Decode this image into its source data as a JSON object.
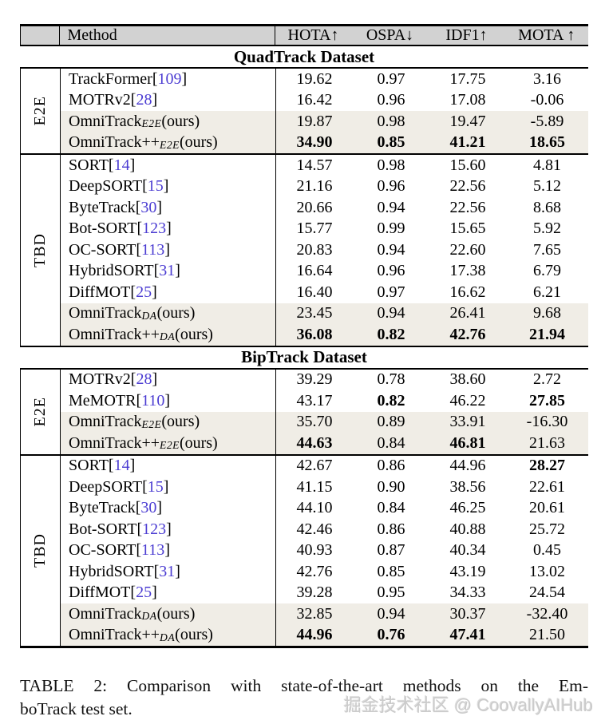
{
  "table": {
    "header": {
      "method": "Method",
      "cols": [
        "HOTA↑",
        "OSPA↓",
        "IDF1↑",
        "MOTA ↑"
      ]
    },
    "citation": {
      "open": "[",
      "close": "]"
    },
    "sections": [
      {
        "title": "QuadTrack Dataset",
        "groups": [
          {
            "label": "E2E",
            "rows": [
              {
                "method": {
                  "name": "TrackFormer",
                  "ref": "109",
                  "sub": "",
                  "suffix": ""
                },
                "shaded": false,
                "values": [
                  "19.62",
                  "0.97",
                  "17.75",
                  "3.16"
                ],
                "bold": [
                  false,
                  false,
                  false,
                  false
                ]
              },
              {
                "method": {
                  "name": "MOTRv2",
                  "ref": "28",
                  "sub": "",
                  "suffix": ""
                },
                "shaded": false,
                "values": [
                  "16.42",
                  "0.96",
                  "17.08",
                  "-0.06"
                ],
                "bold": [
                  false,
                  false,
                  false,
                  false
                ]
              },
              {
                "method": {
                  "name": "OmniTrack",
                  "ref": "",
                  "sub": "E2E",
                  "suffix": " (ours)"
                },
                "shaded": true,
                "values": [
                  "19.87",
                  "0.98",
                  "19.47",
                  "-5.89"
                ],
                "bold": [
                  false,
                  false,
                  false,
                  false
                ]
              },
              {
                "method": {
                  "name": "OmniTrack++",
                  "ref": "",
                  "sub": "E2E",
                  "suffix": " (ours)"
                },
                "shaded": true,
                "values": [
                  "34.90",
                  "0.85",
                  "41.21",
                  "18.65"
                ],
                "bold": [
                  true,
                  true,
                  true,
                  true
                ]
              }
            ]
          },
          {
            "label": "TBD",
            "rows": [
              {
                "method": {
                  "name": "SORT",
                  "ref": "14",
                  "sub": "",
                  "suffix": ""
                },
                "shaded": false,
                "values": [
                  "14.57",
                  "0.98",
                  "15.60",
                  "4.81"
                ],
                "bold": [
                  false,
                  false,
                  false,
                  false
                ]
              },
              {
                "method": {
                  "name": "DeepSORT",
                  "ref": "15",
                  "sub": "",
                  "suffix": ""
                },
                "shaded": false,
                "values": [
                  "21.16",
                  "0.96",
                  "22.56",
                  "5.12"
                ],
                "bold": [
                  false,
                  false,
                  false,
                  false
                ]
              },
              {
                "method": {
                  "name": "ByteTrack",
                  "ref": "30",
                  "sub": "",
                  "suffix": ""
                },
                "shaded": false,
                "values": [
                  "20.66",
                  "0.94",
                  "22.56",
                  "8.68"
                ],
                "bold": [
                  false,
                  false,
                  false,
                  false
                ]
              },
              {
                "method": {
                  "name": "Bot-SORT",
                  "ref": "123",
                  "sub": "",
                  "suffix": ""
                },
                "shaded": false,
                "values": [
                  "15.77",
                  "0.99",
                  "15.65",
                  "5.92"
                ],
                "bold": [
                  false,
                  false,
                  false,
                  false
                ]
              },
              {
                "method": {
                  "name": "OC-SORT",
                  "ref": "113",
                  "sub": "",
                  "suffix": ""
                },
                "shaded": false,
                "values": [
                  "20.83",
                  "0.94",
                  "22.60",
                  "7.65"
                ],
                "bold": [
                  false,
                  false,
                  false,
                  false
                ]
              },
              {
                "method": {
                  "name": "HybridSORT",
                  "ref": "31",
                  "sub": "",
                  "suffix": ""
                },
                "shaded": false,
                "values": [
                  "16.64",
                  "0.96",
                  "17.38",
                  "6.79"
                ],
                "bold": [
                  false,
                  false,
                  false,
                  false
                ]
              },
              {
                "method": {
                  "name": "DiffMOT",
                  "ref": "25",
                  "sub": "",
                  "suffix": ""
                },
                "shaded": false,
                "values": [
                  "16.40",
                  "0.97",
                  "16.62",
                  "6.21"
                ],
                "bold": [
                  false,
                  false,
                  false,
                  false
                ]
              },
              {
                "method": {
                  "name": "OmniTrack",
                  "ref": "",
                  "sub": "DA",
                  "suffix": " (ours)"
                },
                "shaded": true,
                "values": [
                  "23.45",
                  "0.94",
                  "26.41",
                  "9.68"
                ],
                "bold": [
                  false,
                  false,
                  false,
                  false
                ]
              },
              {
                "method": {
                  "name": "OmniTrack++",
                  "ref": "",
                  "sub": "DA",
                  "suffix": " (ours)"
                },
                "shaded": true,
                "values": [
                  "36.08",
                  "0.82",
                  "42.76",
                  "21.94"
                ],
                "bold": [
                  true,
                  true,
                  true,
                  true
                ]
              }
            ]
          }
        ]
      },
      {
        "title": "BipTrack Dataset",
        "groups": [
          {
            "label": "E2E",
            "rows": [
              {
                "method": {
                  "name": "MOTRv2",
                  "ref": "28",
                  "sub": "",
                  "suffix": ""
                },
                "shaded": false,
                "values": [
                  "39.29",
                  "0.78",
                  "38.60",
                  "2.72"
                ],
                "bold": [
                  false,
                  false,
                  false,
                  false
                ]
              },
              {
                "method": {
                  "name": "MeMOTR",
                  "ref": "110",
                  "sub": "",
                  "suffix": ""
                },
                "shaded": false,
                "values": [
                  "43.17",
                  "0.82",
                  "46.22",
                  "27.85"
                ],
                "bold": [
                  false,
                  true,
                  false,
                  true
                ]
              },
              {
                "method": {
                  "name": "OmniTrack",
                  "ref": "",
                  "sub": "E2E",
                  "suffix": " (ours)"
                },
                "shaded": true,
                "values": [
                  "35.70",
                  "0.89",
                  "33.91",
                  "-16.30"
                ],
                "bold": [
                  false,
                  false,
                  false,
                  false
                ]
              },
              {
                "method": {
                  "name": "OmniTrack++",
                  "ref": "",
                  "sub": "E2E",
                  "suffix": " (ours)"
                },
                "shaded": true,
                "values": [
                  "44.63",
                  "0.84",
                  "46.81",
                  "21.63"
                ],
                "bold": [
                  true,
                  false,
                  true,
                  false
                ]
              }
            ]
          },
          {
            "label": "TBD",
            "rows": [
              {
                "method": {
                  "name": "SORT",
                  "ref": "14",
                  "sub": "",
                  "suffix": ""
                },
                "shaded": false,
                "values": [
                  "42.67",
                  "0.86",
                  "44.96",
                  "28.27"
                ],
                "bold": [
                  false,
                  false,
                  false,
                  true
                ]
              },
              {
                "method": {
                  "name": "DeepSORT",
                  "ref": "15",
                  "sub": "",
                  "suffix": ""
                },
                "shaded": false,
                "values": [
                  "41.15",
                  "0.90",
                  "38.56",
                  "22.61"
                ],
                "bold": [
                  false,
                  false,
                  false,
                  false
                ]
              },
              {
                "method": {
                  "name": "ByteTrack",
                  "ref": "30",
                  "sub": "",
                  "suffix": ""
                },
                "shaded": false,
                "values": [
                  "44.10",
                  "0.84",
                  "46.25",
                  "20.61"
                ],
                "bold": [
                  false,
                  false,
                  false,
                  false
                ]
              },
              {
                "method": {
                  "name": "Bot-SORT",
                  "ref": "123",
                  "sub": "",
                  "suffix": ""
                },
                "shaded": false,
                "values": [
                  "42.46",
                  "0.86",
                  "40.88",
                  "25.72"
                ],
                "bold": [
                  false,
                  false,
                  false,
                  false
                ]
              },
              {
                "method": {
                  "name": "OC-SORT",
                  "ref": "113",
                  "sub": "",
                  "suffix": ""
                },
                "shaded": false,
                "values": [
                  "40.93",
                  "0.87",
                  "40.34",
                  "0.45"
                ],
                "bold": [
                  false,
                  false,
                  false,
                  false
                ]
              },
              {
                "method": {
                  "name": "HybridSORT",
                  "ref": "31",
                  "sub": "",
                  "suffix": ""
                },
                "shaded": false,
                "values": [
                  "42.76",
                  "0.85",
                  "43.19",
                  "13.02"
                ],
                "bold": [
                  false,
                  false,
                  false,
                  false
                ]
              },
              {
                "method": {
                  "name": "DiffMOT",
                  "ref": "25",
                  "sub": "",
                  "suffix": ""
                },
                "shaded": false,
                "values": [
                  "39.28",
                  "0.95",
                  "34.33",
                  "24.54"
                ],
                "bold": [
                  false,
                  false,
                  false,
                  false
                ]
              },
              {
                "method": {
                  "name": "OmniTrack",
                  "ref": "",
                  "sub": "DA",
                  "suffix": " (ours)"
                },
                "shaded": true,
                "values": [
                  "32.85",
                  "0.94",
                  "30.37",
                  "-32.40"
                ],
                "bold": [
                  false,
                  false,
                  false,
                  false
                ]
              },
              {
                "method": {
                  "name": "OmniTrack++",
                  "ref": "",
                  "sub": "DA",
                  "suffix": " (ours)"
                },
                "shaded": true,
                "values": [
                  "44.96",
                  "0.76",
                  "47.41",
                  "21.50"
                ],
                "bold": [
                  true,
                  true,
                  true,
                  false
                ]
              }
            ]
          }
        ]
      }
    ]
  },
  "caption": {
    "lines": [
      "TABLE 2: Comparison with state-of-the-art methods on the Em-",
      "boTrack test set."
    ]
  },
  "watermark": "掘金技术社区 @ CoovallyAIHub",
  "colors": {
    "citation": "#4b3cd2",
    "header_bg": "#d2d2d2",
    "ours_row_bg": "#f0ede6",
    "watermark": "#cbcbcb"
  }
}
